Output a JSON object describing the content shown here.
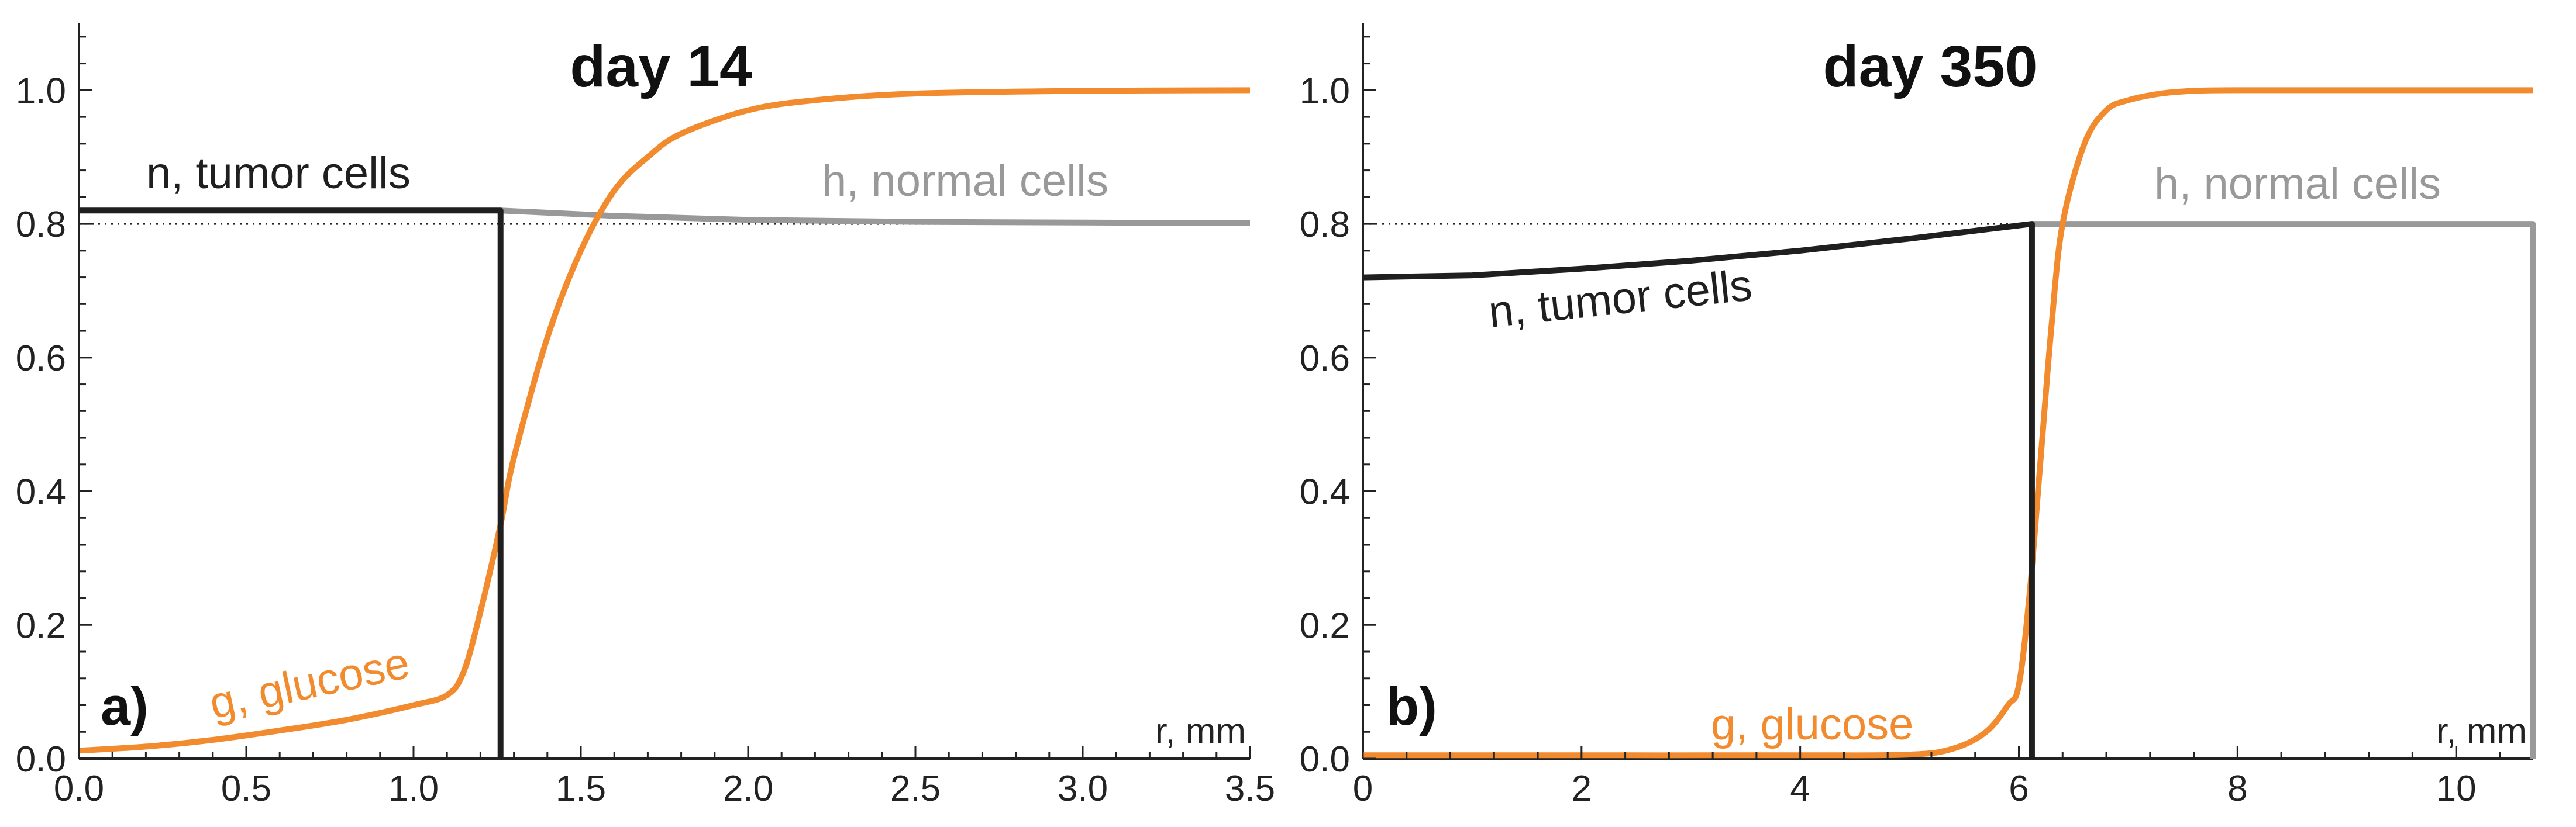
{
  "chart_data": [
    {
      "type": "line",
      "panel_label": "a)",
      "title": "day 14",
      "xlabel": "r, mm",
      "ylabel": "",
      "xlim": [
        0,
        3.5
      ],
      "ylim": [
        0,
        1.1
      ],
      "xticks": [
        0.0,
        0.5,
        1.0,
        1.5,
        2.0,
        2.5,
        3.0,
        3.5
      ],
      "xtick_labels": [
        "0.0",
        "0.5",
        "1.0",
        "1.5",
        "2.0",
        "2.5",
        "3.0",
        "3.5"
      ],
      "yticks": [
        0.0,
        0.2,
        0.4,
        0.6,
        0.8,
        1.0
      ],
      "ytick_labels": [
        "0.0",
        "0.2",
        "0.4",
        "0.6",
        "0.8",
        "1.0"
      ],
      "reference_line": {
        "y": 0.8,
        "style": "dotted"
      },
      "colors": {
        "tumor": "#1f1f1f",
        "normal": "#999999",
        "glucose": "#f28a2e"
      },
      "series": [
        {
          "name": "n, tumor cells",
          "key": "tumor",
          "x": [
            0,
            1.26,
            1.26
          ],
          "y": [
            0.82,
            0.82,
            0.0
          ]
        },
        {
          "name": "h, normal cells",
          "key": "normal",
          "x": [
            1.26,
            1.6,
            2.0,
            2.5,
            3.0,
            3.5
          ],
          "y": [
            0.82,
            0.812,
            0.806,
            0.803,
            0.802,
            0.801
          ]
        },
        {
          "name": "g, glucose",
          "key": "glucose",
          "x": [
            0,
            0.2,
            0.4,
            0.6,
            0.8,
            1.0,
            1.1,
            1.15,
            1.2,
            1.26,
            1.3,
            1.4,
            1.5,
            1.6,
            1.7,
            1.8,
            2.0,
            2.2,
            2.5,
            3.0,
            3.5
          ],
          "y": [
            0.012,
            0.018,
            0.028,
            0.042,
            0.058,
            0.08,
            0.095,
            0.13,
            0.22,
            0.35,
            0.45,
            0.63,
            0.76,
            0.85,
            0.9,
            0.935,
            0.97,
            0.985,
            0.995,
            0.999,
            1.0
          ]
        }
      ],
      "annotations": [
        {
          "text": "n, tumor cells",
          "key": "tumor"
        },
        {
          "text": "h, normal cells",
          "key": "normal"
        },
        {
          "text": "g, glucose",
          "key": "glucose"
        }
      ]
    },
    {
      "type": "line",
      "panel_label": "b)",
      "title": "day 350",
      "xlabel": "r, mm",
      "ylabel": "",
      "xlim": [
        0,
        10.7
      ],
      "ylim": [
        0,
        1.1
      ],
      "xticks": [
        0,
        2,
        4,
        6,
        8,
        10
      ],
      "xtick_labels": [
        "0",
        "2",
        "4",
        "6",
        "8",
        "10"
      ],
      "yticks": [
        0.0,
        0.2,
        0.4,
        0.6,
        0.8,
        1.0
      ],
      "ytick_labels": [
        "0.0",
        "0.2",
        "0.4",
        "0.6",
        "0.8",
        "1.0"
      ],
      "reference_line": {
        "y": 0.8,
        "style": "dotted"
      },
      "colors": {
        "tumor": "#1f1f1f",
        "normal": "#999999",
        "glucose": "#f28a2e"
      },
      "series": [
        {
          "name": "n, tumor cells",
          "key": "tumor",
          "x": [
            0,
            1,
            2,
            3,
            4,
            5,
            6.12,
            6.12
          ],
          "y": [
            0.72,
            0.723,
            0.733,
            0.745,
            0.76,
            0.778,
            0.8,
            0.0
          ]
        },
        {
          "name": "h, normal cells",
          "key": "normal",
          "x": [
            6.12,
            10.7,
            10.7
          ],
          "y": [
            0.8,
            0.8,
            0.0
          ]
        },
        {
          "name": "g, glucose",
          "key": "glucose",
          "x": [
            0,
            2,
            4,
            5.0,
            5.4,
            5.7,
            5.9,
            6.0,
            6.1,
            6.2,
            6.3,
            6.4,
            6.6,
            6.8,
            7.0,
            7.3,
            7.6,
            8.0,
            9,
            10.7
          ],
          "y": [
            0.005,
            0.005,
            0.005,
            0.006,
            0.015,
            0.04,
            0.08,
            0.11,
            0.25,
            0.45,
            0.65,
            0.8,
            0.92,
            0.97,
            0.985,
            0.995,
            0.999,
            1.0,
            1.0,
            1.0
          ]
        }
      ],
      "annotations": [
        {
          "text": "n, tumor cells",
          "key": "tumor"
        },
        {
          "text": "h, normal cells",
          "key": "normal"
        },
        {
          "text": "g, glucose",
          "key": "glucose"
        }
      ]
    }
  ]
}
